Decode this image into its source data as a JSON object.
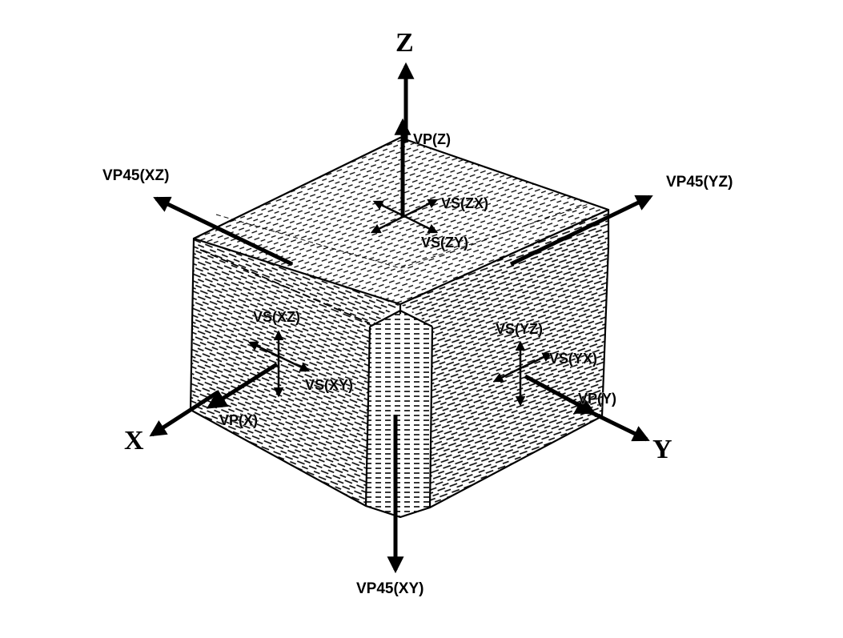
{
  "axes": {
    "z": "Z",
    "x": "X",
    "y": "Y"
  },
  "labels": {
    "vp_z": "VP(Z)",
    "vp45_xz": "VP45(XZ)",
    "vp45_yz": "VP45(YZ)",
    "vs_zx": "VS(ZX)",
    "vs_zy": "VS(ZY)",
    "vs_xz": "VS(XZ)",
    "vs_xy": "VS(XY)",
    "vp_x": "VP(X)",
    "vs_yz": "VS(YZ)",
    "vs_yx": "VS(YX)",
    "vp_y": "VP(Y)",
    "vp45_xy": "VP45(XY)"
  },
  "colors": {
    "ink": "#000000",
    "background": "#ffffff"
  }
}
